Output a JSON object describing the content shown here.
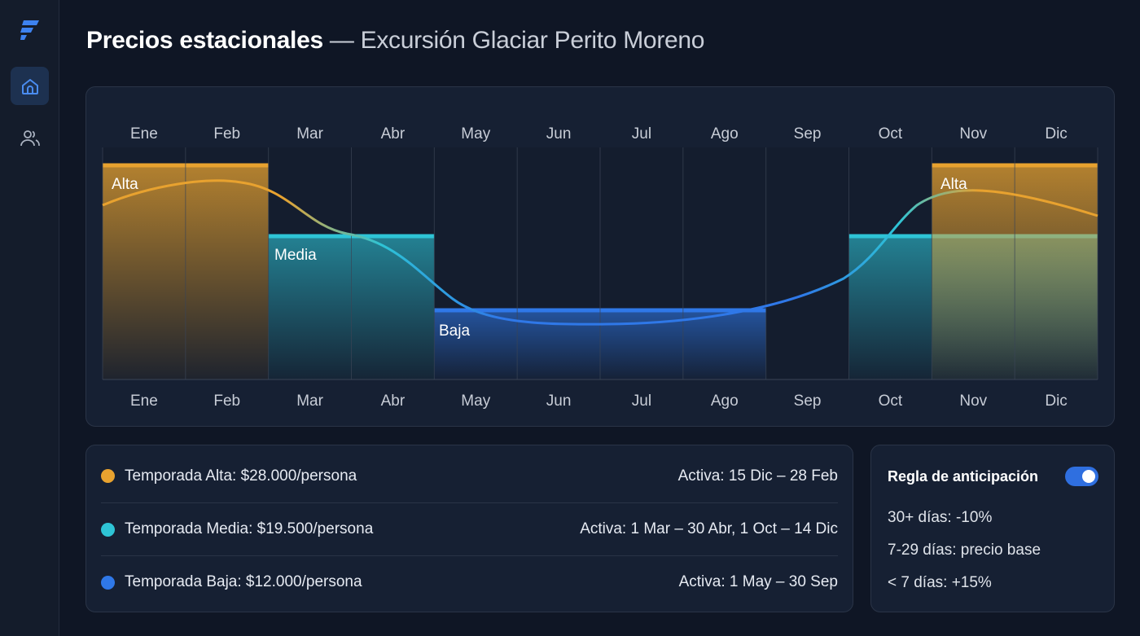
{
  "header": {
    "title": "Precios estacionales",
    "separator": " — ",
    "subtitle": "Excursión Glaciar Perito Moreno"
  },
  "sidebar": {
    "items": [
      {
        "name": "home",
        "icon": "home-icon",
        "active": true
      },
      {
        "name": "users",
        "icon": "users-icon",
        "active": false
      }
    ]
  },
  "colors": {
    "alta": "#e8a22f",
    "media": "#2ec4d6",
    "baja": "#2f78e8",
    "accent": "#2f6fe0"
  },
  "chart_data": {
    "type": "area",
    "categories": [
      "Ene",
      "Feb",
      "Mar",
      "Abr",
      "May",
      "Jun",
      "Jul",
      "Ago",
      "Sep",
      "Oct",
      "Nov",
      "Dic"
    ],
    "bands": [
      {
        "name": "Alta",
        "months": [
          "Ene",
          "Feb"
        ],
        "color": "#e8a22f"
      },
      {
        "name": "Alta",
        "months": [
          "Nov",
          "Dic"
        ],
        "color": "#e8a22f"
      },
      {
        "name": "Media",
        "months": [
          "Mar",
          "Abr"
        ],
        "color": "#2ec4d6"
      },
      {
        "name": "Media",
        "months": [
          "Oct",
          "Nov",
          "Dic"
        ],
        "color": "#2ec4d6"
      },
      {
        "name": "Baja",
        "months": [
          "May",
          "Jun",
          "Jul",
          "Ago"
        ],
        "color": "#2f78e8"
      }
    ],
    "labels": {
      "alta": "Alta",
      "media": "Media",
      "baja": "Baja"
    },
    "grid": true
  },
  "legend": [
    {
      "label": "Temporada Alta: $28.000/persona",
      "active": "Activa: 15 Dic – 28 Feb",
      "color": "#e8a22f"
    },
    {
      "label": "Temporada Media: $19.500/persona",
      "active": "Activa: 1 Mar – 30 Abr, 1 Oct – 14 Dic",
      "color": "#2ec4d6"
    },
    {
      "label": "Temporada Baja: $12.000/persona",
      "active": "Activa: 1 May – 30 Sep",
      "color": "#2f78e8"
    }
  ],
  "rule": {
    "title": "Regla de anticipación",
    "enabled": true,
    "items": [
      "30+ días: -10%",
      "7-29 días: precio base",
      "< 7 días: +15%"
    ]
  }
}
